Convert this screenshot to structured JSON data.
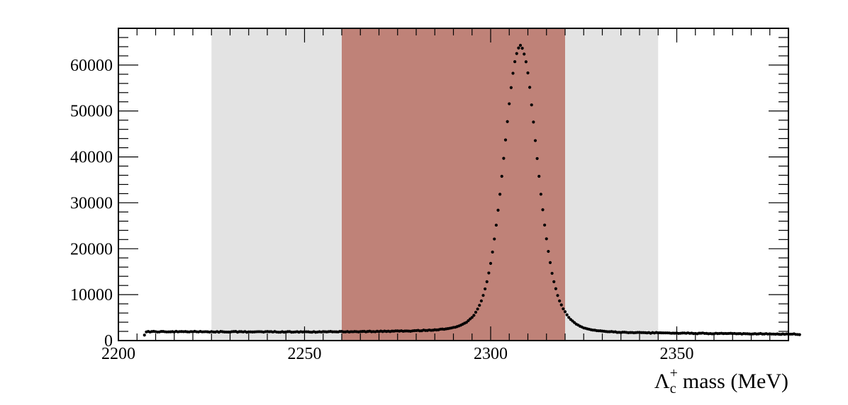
{
  "chart_data": {
    "type": "scatter",
    "xlabel": "mass (MeV)",
    "xlabel_symbol": "Λ",
    "xlabel_sub": "c",
    "xlabel_sup": "+",
    "xlim": [
      2200,
      2380
    ],
    "ylim": [
      0,
      68000
    ],
    "x_ticks": [
      2200,
      2250,
      2300,
      2350
    ],
    "y_ticks": [
      0,
      10000,
      20000,
      30000,
      40000,
      50000,
      60000
    ],
    "sideband_region": [
      2225,
      2345
    ],
    "signal_region": [
      2260,
      2320
    ],
    "colors": {
      "sideband": "#e3e3e3",
      "signal": "#bf8278",
      "points": "#000000"
    },
    "series": [
      {
        "x_start": 2207.0,
        "x_step": 0.5,
        "y": [
          1200,
          1880,
          1990,
          1870,
          1970,
          2010,
          1940,
          1860,
          1880,
          1990,
          1980,
          1920,
          1880,
          1900,
          1910,
          1950,
          1870,
          2010,
          1900,
          1960,
          1970,
          1940,
          1970,
          1910,
          1880,
          1960,
          1910,
          2000,
          1920,
          1880,
          1980,
          1900,
          1920,
          1940,
          1910,
          1840,
          1960,
          1880,
          1850,
          1960,
          1820,
          1990,
          1930,
          1870,
          1860,
          1850,
          1850,
          1940,
          1970,
          1980,
          1830,
          1950,
          1950,
          1880,
          1960,
          1810,
          1900,
          1900,
          1870,
          1890,
          1920,
          1940,
          1940,
          1920,
          1840,
          1940,
          1970,
          1930,
          1950,
          1860,
          1970,
          1860,
          1820,
          1820,
          1930,
          1830,
          1870,
          1950,
          1960,
          1830,
          1840,
          1880,
          1940,
          1830,
          1940,
          1870,
          1930,
          1920,
          1910,
          1840,
          1820,
          1940,
          1810,
          1860,
          1930,
          1860,
          1950,
          1930,
          1890,
          1950,
          1980,
          1910,
          1920,
          1910,
          1880,
          1980,
          1990,
          1890,
          1890,
          1970,
          1870,
          1940,
          1920,
          1970,
          1940,
          1890,
          1950,
          1990,
          2010,
          1910,
          1990,
          2050,
          1930,
          1960,
          1920,
          2020,
          1950,
          2060,
          1970,
          2060,
          1990,
          2050,
          1970,
          2060,
          2050,
          2110,
          2100,
          2060,
          2130,
          2030,
          2080,
          2090,
          2070,
          2030,
          2110,
          2160,
          2170,
          2220,
          2110,
          2140,
          2280,
          2200,
          2200,
          2300,
          2230,
          2250,
          2350,
          2310,
          2350,
          2480,
          2510,
          2460,
          2540,
          2600,
          2670,
          2750,
          2860,
          2900,
          3050,
          3190,
          3350,
          3560,
          3780,
          3960,
          4340,
          4710,
          5040,
          5490,
          6170,
          6870,
          7680,
          8630,
          9840,
          11250,
          12820,
          14720,
          16810,
          19280,
          22120,
          25140,
          28390,
          31860,
          35770,
          39680,
          43700,
          47690,
          51570,
          55090,
          58210,
          60740,
          62510,
          63720,
          64300,
          63660,
          62390,
          60710,
          58290,
          55140,
          51320,
          47590,
          43550,
          39640,
          35770,
          31870,
          28490,
          25160,
          22160,
          19420,
          16980,
          14640,
          12820,
          11290,
          9820,
          8640,
          7770,
          6910,
          6290,
          5610,
          5040,
          4600,
          4260,
          3920,
          3590,
          3380,
          3120,
          2960,
          2750,
          2670,
          2550,
          2460,
          2350,
          2280,
          2250,
          2160,
          2130,
          2120,
          2060,
          2020,
          1970,
          1930,
          1930,
          1970,
          1890,
          1910,
          1770,
          1800,
          1750,
          1830,
          1830,
          1780,
          1710,
          1750,
          1760,
          1700,
          1730,
          1770,
          1780,
          1740,
          1740,
          1710,
          1680,
          1730,
          1600,
          1730,
          1650,
          1750,
          1680,
          1700,
          1680,
          1670,
          1670,
          1670,
          1650,
          1590,
          1620,
          1600,
          1640,
          1550,
          1590,
          1640,
          1650,
          1590,
          1670,
          1570,
          1620,
          1520,
          1550,
          1490,
          1600,
          1600,
          1650,
          1550,
          1560,
          1490,
          1530,
          1470,
          1480,
          1590,
          1520,
          1550,
          1590,
          1520,
          1550,
          1530,
          1550,
          1580,
          1520,
          1550,
          1480,
          1500,
          1520,
          1430,
          1520,
          1480,
          1490,
          1450,
          1420,
          1450,
          1500,
          1430,
          1460,
          1540,
          1430,
          1430,
          1510,
          1420,
          1470,
          1420,
          1420,
          1390,
          1440,
          1370,
          1350,
          1450,
          1360,
          1450,
          1380,
          1400,
          1400,
          1460,
          1340,
          1320,
          1290
        ]
      }
    ]
  }
}
